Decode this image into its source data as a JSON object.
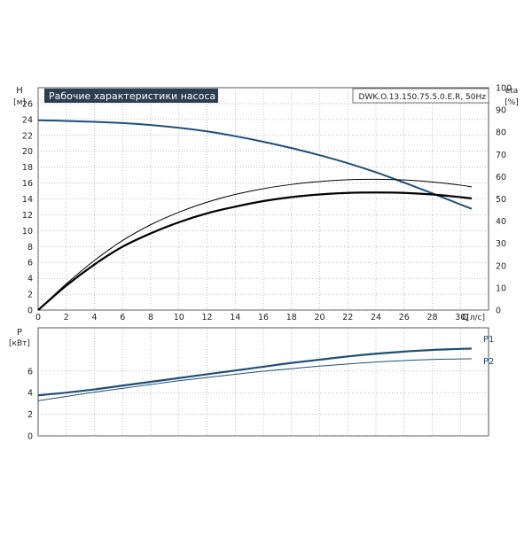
{
  "chart_data": [
    {
      "type": "line",
      "title": "Рабочие характеристики насоса",
      "model_label": "DWK.O.13.150.75.5.0.E.R, 50Hz",
      "ylabel": "H",
      "yunit": "[м]",
      "y2label": "eta",
      "y2unit": "[%]",
      "xlabel": "Q",
      "xunit": "[л/с]",
      "xlim": [
        0,
        32
      ],
      "ylim": [
        0,
        28
      ],
      "y2lim": [
        0,
        100
      ],
      "xticks": [
        "0",
        "2",
        "4",
        "6",
        "8",
        "10",
        "12",
        "14",
        "16",
        "18",
        "20",
        "22",
        "24",
        "26",
        "28",
        "30"
      ],
      "yticks": [
        "0",
        "2",
        "4",
        "6",
        "8",
        "10",
        "12",
        "14",
        "16",
        "18",
        "20",
        "22",
        "24",
        "26"
      ],
      "y2ticks": [
        "0",
        "10",
        "20",
        "30",
        "40",
        "50",
        "60",
        "70",
        "80",
        "90",
        "100"
      ],
      "grid": true,
      "colors": {
        "head": "#1f4e79",
        "eta": "#000000",
        "grid": "#9a9a9a",
        "title_bg": "#2d3e50"
      },
      "series": [
        {
          "name": "",
          "axis": "left",
          "x": [
            0,
            2,
            4,
            6,
            8,
            10,
            12,
            14,
            16,
            18,
            20,
            22,
            24,
            26,
            28,
            30,
            30.8
          ],
          "y": [
            23.9,
            23.82,
            23.7,
            23.55,
            23.3,
            22.95,
            22.5,
            21.9,
            21.2,
            20.4,
            19.5,
            18.5,
            17.35,
            16.05,
            14.7,
            13.3,
            12.75
          ]
        },
        {
          "name": "",
          "axis": "right",
          "x": [
            0,
            2,
            4,
            6,
            8,
            10,
            12,
            14,
            16,
            18,
            20,
            22,
            24,
            26,
            28,
            30,
            30.8
          ],
          "y": [
            0,
            11,
            20.5,
            28.5,
            34.5,
            39.5,
            43.5,
            46.5,
            49,
            50.8,
            52,
            52.7,
            52.9,
            52.7,
            52,
            50.8,
            50.2
          ]
        },
        {
          "name": "",
          "axis": "right",
          "x": [
            0,
            2,
            4,
            6,
            8,
            10,
            12,
            14,
            16,
            18,
            20,
            22,
            24,
            26,
            28,
            30,
            30.8
          ],
          "y": [
            0,
            11.8,
            22.3,
            31.3,
            38.4,
            44,
            48.5,
            52,
            54.6,
            56.5,
            57.8,
            58.6,
            58.8,
            58.5,
            57.6,
            56.2,
            55.4
          ]
        }
      ]
    },
    {
      "type": "line",
      "ylabel": "P",
      "yunit": "[кВт]",
      "xlim": [
        0,
        32
      ],
      "ylim": [
        0,
        10
      ],
      "yticks": [
        "0",
        "2",
        "4",
        "6"
      ],
      "grid": true,
      "series": [
        {
          "name": "P1",
          "x": [
            0,
            2,
            4,
            6,
            8,
            10,
            12,
            14,
            16,
            18,
            20,
            22,
            24,
            26,
            28,
            30,
            30.8
          ],
          "y": [
            3.75,
            4.0,
            4.3,
            4.65,
            5.0,
            5.35,
            5.7,
            6.05,
            6.4,
            6.75,
            7.05,
            7.35,
            7.6,
            7.8,
            7.95,
            8.05,
            8.08
          ]
        },
        {
          "name": "P2",
          "x": [
            0,
            2,
            4,
            6,
            8,
            10,
            12,
            14,
            16,
            18,
            20,
            22,
            24,
            26,
            28,
            30,
            30.8
          ],
          "y": [
            3.25,
            3.65,
            4.05,
            4.4,
            4.75,
            5.1,
            5.4,
            5.7,
            5.98,
            6.22,
            6.45,
            6.65,
            6.83,
            6.97,
            7.07,
            7.12,
            7.13
          ]
        }
      ]
    }
  ]
}
